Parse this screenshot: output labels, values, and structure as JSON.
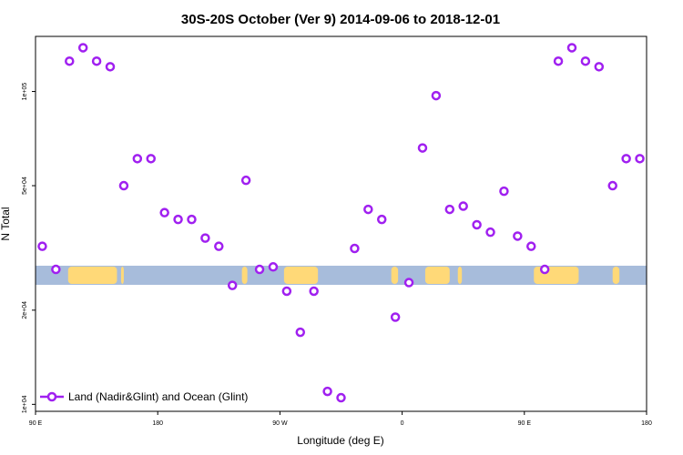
{
  "chart_data": {
    "type": "scatter",
    "title": "30S-20S October (Ver 9)   2014-09-06 to 2018-12-01",
    "xlabel": "Longitude (deg E)",
    "ylabel": "N Total",
    "y_scale": "log",
    "xlim": [
      90,
      540
    ],
    "ylim": [
      9500,
      150000
    ],
    "x_ticks": [
      {
        "value": 90,
        "label": "90 E"
      },
      {
        "value": 180,
        "label": "180"
      },
      {
        "value": 270,
        "label": "90 W"
      },
      {
        "value": 360,
        "label": "0"
      },
      {
        "value": 450,
        "label": "90 E"
      },
      {
        "value": 540,
        "label": "180"
      }
    ],
    "y_ticks": [
      {
        "value": 10000,
        "label": "1e+04"
      },
      {
        "value": 20000,
        "label": "2e+04"
      },
      {
        "value": 50000,
        "label": "5e+04"
      },
      {
        "value": 100000,
        "label": "1e+05"
      }
    ],
    "grid": false,
    "legend_position": "bottom-left",
    "series": [
      {
        "name": "Land (Nadir&Glint) and Ocean (Glint)",
        "color": "#a020f0",
        "marker": "circle-open",
        "x": [
          95,
          105,
          115,
          125,
          135,
          145,
          155,
          165,
          175,
          185,
          195,
          205,
          215,
          225,
          235,
          245,
          255,
          265,
          275,
          285,
          295,
          305,
          315,
          325,
          335,
          345,
          355,
          365,
          375,
          385,
          395,
          405,
          415,
          425,
          435,
          445,
          455,
          465,
          475,
          485,
          495,
          505,
          515,
          525,
          535
        ],
        "y": [
          32000,
          27000,
          125000,
          138000,
          125000,
          120000,
          50000,
          61000,
          61000,
          41000,
          39000,
          39000,
          34000,
          32000,
          24000,
          52000,
          27000,
          27500,
          23000,
          17000,
          23000,
          11000,
          10500,
          31500,
          42000,
          39000,
          19000,
          24500,
          66000,
          97000,
          42000,
          43000,
          37500,
          35500,
          48000,
          34500,
          32000,
          27000,
          125000,
          138000,
          125000,
          120000,
          50000,
          61000,
          61000
        ]
      }
    ],
    "map_strip": {
      "ocean_color": "#a7bcdb",
      "land_color": "#ffd978",
      "land_segments": [
        [
          114,
          150
        ],
        [
          130,
          134
        ],
        [
          153,
          155
        ],
        [
          242,
          246
        ],
        [
          273,
          298
        ],
        [
          352,
          357
        ],
        [
          377,
          395
        ],
        [
          401,
          404
        ],
        [
          457,
          490
        ],
        [
          515,
          520
        ]
      ]
    }
  }
}
